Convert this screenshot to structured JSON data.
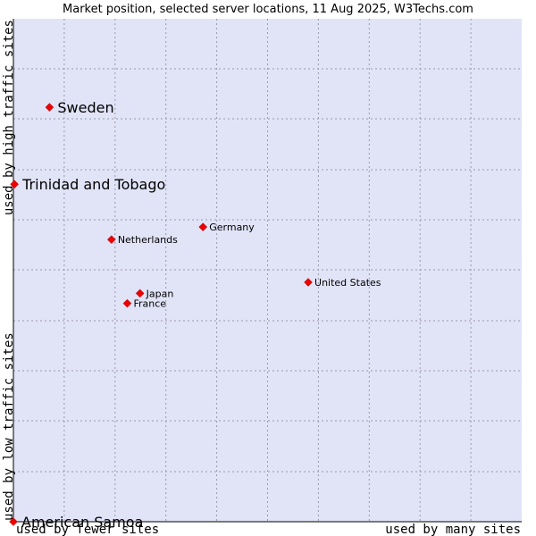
{
  "chart_data": {
    "type": "scatter",
    "title": "Market position, selected server locations, 11 Aug 2025, W3Techs.com",
    "x_axis": {
      "left_label": "used by fewer sites",
      "right_label": "used by many sites"
    },
    "y_axis": {
      "bottom_label": "used by low traffic sites",
      "top_label": "used by high traffic sites"
    },
    "xlim": [
      0,
      100
    ],
    "ylim": [
      0,
      100
    ],
    "grid": true,
    "colors": {
      "plot_background": "#e1e3f7",
      "grid": "#9a9aaa",
      "point": "#ee0000"
    },
    "points": [
      {
        "name": "Sweden",
        "x": 7.1,
        "y": 82.4,
        "emphasis": true
      },
      {
        "name": "Trinidad and Tobago",
        "x": 0.2,
        "y": 67.1,
        "emphasis": true
      },
      {
        "name": "American Samoa",
        "x": 0.0,
        "y": 0.0,
        "emphasis": true
      },
      {
        "name": "Germany",
        "x": 37.3,
        "y": 58.6,
        "emphasis": false
      },
      {
        "name": "Netherlands",
        "x": 19.3,
        "y": 56.1,
        "emphasis": false
      },
      {
        "name": "United States",
        "x": 58.0,
        "y": 47.6,
        "emphasis": false
      },
      {
        "name": "Japan",
        "x": 24.9,
        "y": 45.4,
        "emphasis": false
      },
      {
        "name": "France",
        "x": 22.4,
        "y": 43.4,
        "emphasis": false
      }
    ]
  }
}
